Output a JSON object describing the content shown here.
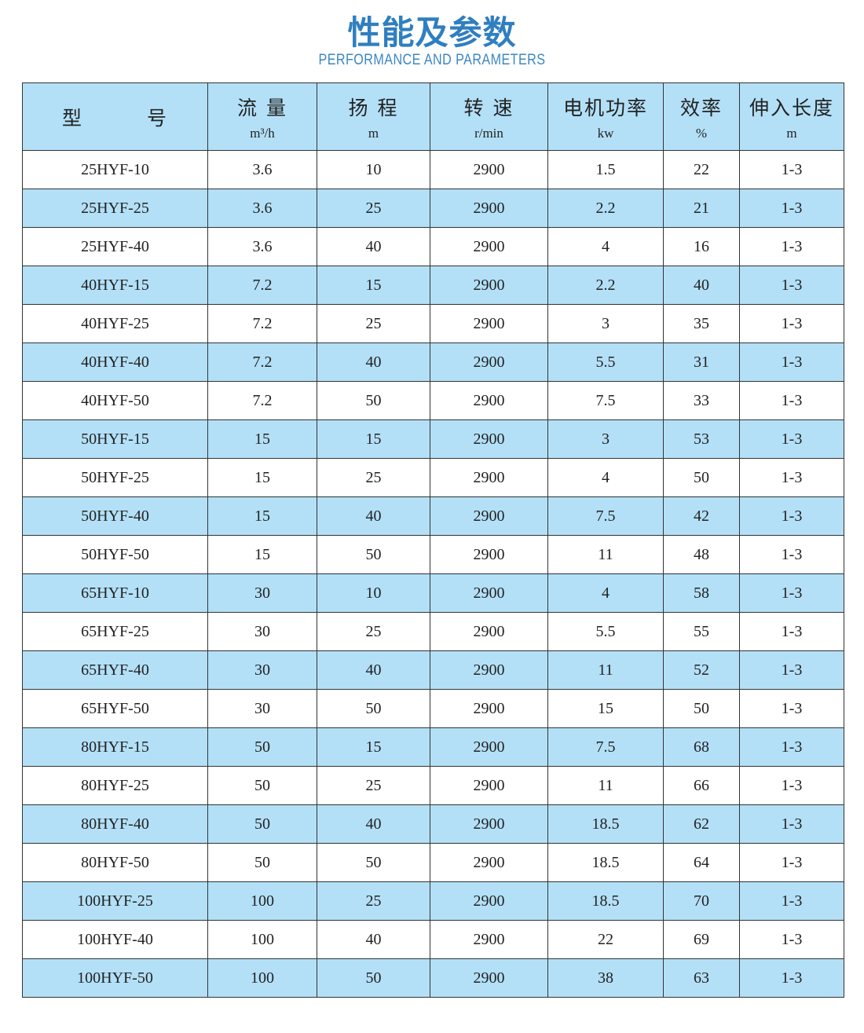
{
  "title": "性能及参数",
  "subtitle": "PERFORMANCE AND PARAMETERS",
  "colors": {
    "title": "#2f7fc0",
    "header_bg": "#b3e0f7",
    "alt_row_bg": "#b3e0f7"
  },
  "headers": [
    {
      "label": "型　　　号",
      "unit": ""
    },
    {
      "label": "流 量",
      "unit": "m³/h"
    },
    {
      "label": "扬 程",
      "unit": "m"
    },
    {
      "label": "转 速",
      "unit": "r/min"
    },
    {
      "label": "电机功率",
      "unit": "kw"
    },
    {
      "label": "效率",
      "unit": "%"
    },
    {
      "label": "伸入长度",
      "unit": "m"
    }
  ],
  "rows": [
    [
      "25HYF-10",
      "3.6",
      "10",
      "2900",
      "1.5",
      "22",
      "1-3"
    ],
    [
      "25HYF-25",
      "3.6",
      "25",
      "2900",
      "2.2",
      "21",
      "1-3"
    ],
    [
      "25HYF-40",
      "3.6",
      "40",
      "2900",
      "4",
      "16",
      "1-3"
    ],
    [
      "40HYF-15",
      "7.2",
      "15",
      "2900",
      "2.2",
      "40",
      "1-3"
    ],
    [
      "40HYF-25",
      "7.2",
      "25",
      "2900",
      "3",
      "35",
      "1-3"
    ],
    [
      "40HYF-40",
      "7.2",
      "40",
      "2900",
      "5.5",
      "31",
      "1-3"
    ],
    [
      "40HYF-50",
      "7.2",
      "50",
      "2900",
      "7.5",
      "33",
      "1-3"
    ],
    [
      "50HYF-15",
      "15",
      "15",
      "2900",
      "3",
      "53",
      "1-3"
    ],
    [
      "50HYF-25",
      "15",
      "25",
      "2900",
      "4",
      "50",
      "1-3"
    ],
    [
      "50HYF-40",
      "15",
      "40",
      "2900",
      "7.5",
      "42",
      "1-3"
    ],
    [
      "50HYF-50",
      "15",
      "50",
      "2900",
      "11",
      "48",
      "1-3"
    ],
    [
      "65HYF-10",
      "30",
      "10",
      "2900",
      "4",
      "58",
      "1-3"
    ],
    [
      "65HYF-25",
      "30",
      "25",
      "2900",
      "5.5",
      "55",
      "1-3"
    ],
    [
      "65HYF-40",
      "30",
      "40",
      "2900",
      "11",
      "52",
      "1-3"
    ],
    [
      "65HYF-50",
      "30",
      "50",
      "2900",
      "15",
      "50",
      "1-3"
    ],
    [
      "80HYF-15",
      "50",
      "15",
      "2900",
      "7.5",
      "68",
      "1-3"
    ],
    [
      "80HYF-25",
      "50",
      "25",
      "2900",
      "11",
      "66",
      "1-3"
    ],
    [
      "80HYF-40",
      "50",
      "40",
      "2900",
      "18.5",
      "62",
      "1-3"
    ],
    [
      "80HYF-50",
      "50",
      "50",
      "2900",
      "18.5",
      "64",
      "1-3"
    ],
    [
      "100HYF-25",
      "100",
      "25",
      "2900",
      "18.5",
      "70",
      "1-3"
    ],
    [
      "100HYF-40",
      "100",
      "40",
      "2900",
      "22",
      "69",
      "1-3"
    ],
    [
      "100HYF-50",
      "100",
      "50",
      "2900",
      "38",
      "63",
      "1-3"
    ]
  ]
}
